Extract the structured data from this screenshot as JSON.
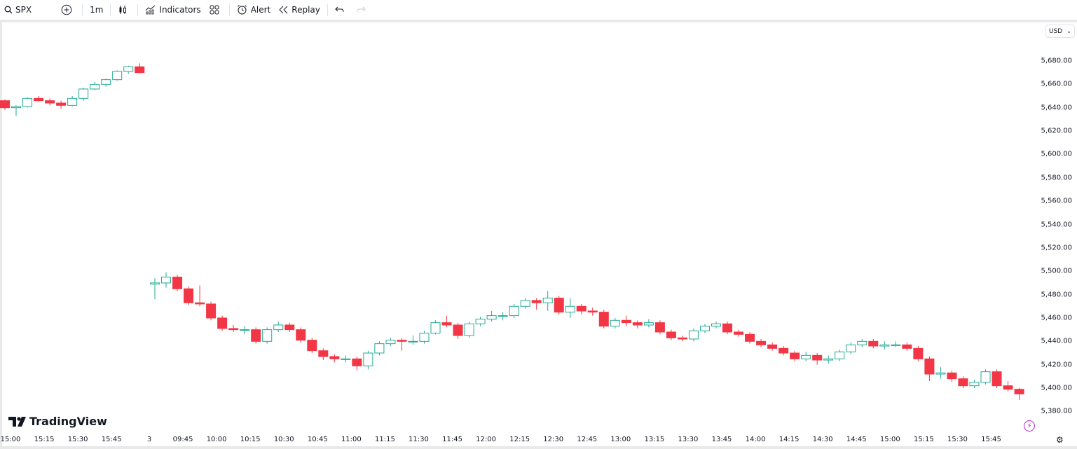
{
  "toolbar": {
    "symbol": "SPX",
    "interval": "1m",
    "indicators_label": "Indicators",
    "alert_label": "Alert",
    "replay_label": "Replay"
  },
  "currency": "USD",
  "brand": "TradingView",
  "colors": {
    "up": "#22ab94",
    "down": "#f23645",
    "accent": "#b526c9"
  },
  "chart_data": {
    "type": "candlestick",
    "symbol": "SPX",
    "interval": "1m",
    "ylim": [
      5370,
      5690
    ],
    "y_ticks": [
      "5,680.00",
      "5,660.00",
      "5,640.00",
      "5,620.00",
      "5,600.00",
      "5,580.00",
      "5,560.00",
      "5,540.00",
      "5,520.00",
      "5,500.00",
      "5,480.00",
      "5,460.00",
      "5,440.00",
      "5,420.00",
      "5,400.00",
      "5,380.00"
    ],
    "y_tick_values": [
      5680,
      5660,
      5640,
      5620,
      5600,
      5580,
      5560,
      5540,
      5520,
      5500,
      5480,
      5460,
      5440,
      5420,
      5400,
      5380
    ],
    "x_ticks": [
      {
        "label": "15:00",
        "session": 1,
        "time": "15:00"
      },
      {
        "label": "15:15",
        "session": 1,
        "time": "15:15"
      },
      {
        "label": "15:30",
        "session": 1,
        "time": "15:30"
      },
      {
        "label": "15:45",
        "session": 1,
        "time": "15:45"
      },
      {
        "label": "3",
        "session": 2,
        "time": "09:30"
      },
      {
        "label": "09:45",
        "session": 2,
        "time": "09:45"
      },
      {
        "label": "10:00",
        "session": 2,
        "time": "10:00"
      },
      {
        "label": "10:15",
        "session": 2,
        "time": "10:15"
      },
      {
        "label": "10:30",
        "session": 2,
        "time": "10:30"
      },
      {
        "label": "10:45",
        "session": 2,
        "time": "10:45"
      },
      {
        "label": "11:00",
        "session": 2,
        "time": "11:00"
      },
      {
        "label": "11:15",
        "session": 2,
        "time": "11:15"
      },
      {
        "label": "11:30",
        "session": 2,
        "time": "11:30"
      },
      {
        "label": "11:45",
        "session": 2,
        "time": "11:45"
      },
      {
        "label": "12:00",
        "session": 2,
        "time": "12:00"
      },
      {
        "label": "12:15",
        "session": 2,
        "time": "12:15"
      },
      {
        "label": "12:30",
        "session": 2,
        "time": "12:30"
      },
      {
        "label": "12:45",
        "session": 2,
        "time": "12:45"
      },
      {
        "label": "13:00",
        "session": 2,
        "time": "13:00"
      },
      {
        "label": "13:15",
        "session": 2,
        "time": "13:15"
      },
      {
        "label": "13:30",
        "session": 2,
        "time": "13:30"
      },
      {
        "label": "13:45",
        "session": 2,
        "time": "13:45"
      },
      {
        "label": "14:00",
        "session": 2,
        "time": "14:00"
      },
      {
        "label": "14:15",
        "session": 2,
        "time": "14:15"
      },
      {
        "label": "14:30",
        "session": 2,
        "time": "14:30"
      },
      {
        "label": "14:45",
        "session": 2,
        "time": "14:45"
      },
      {
        "label": "15:00",
        "session": 2,
        "time": "15:00"
      },
      {
        "label": "15:15",
        "session": 2,
        "time": "15:15"
      },
      {
        "label": "15:30",
        "session": 2,
        "time": "15:30"
      },
      {
        "label": "15:45",
        "session": 2,
        "time": "15:45"
      }
    ],
    "candle_columns": [
      "time",
      "open",
      "high",
      "low",
      "close"
    ],
    "sessions": [
      {
        "candles": [
          [
            "14:55",
            5646,
            5647,
            5638,
            5640
          ],
          [
            "15:00",
            5640,
            5642,
            5633,
            5641
          ],
          [
            "15:05",
            5641,
            5649,
            5640,
            5648
          ],
          [
            "15:10",
            5648,
            5650,
            5645,
            5646
          ],
          [
            "15:15",
            5646,
            5648,
            5642,
            5644
          ],
          [
            "15:20",
            5644,
            5646,
            5639,
            5642
          ],
          [
            "15:25",
            5642,
            5650,
            5641,
            5648
          ],
          [
            "15:30",
            5648,
            5657,
            5646,
            5656
          ],
          [
            "15:35",
            5656,
            5662,
            5655,
            5660
          ],
          [
            "15:40",
            5660,
            5665,
            5658,
            5664
          ],
          [
            "15:45",
            5664,
            5672,
            5663,
            5671
          ],
          [
            "15:50",
            5671,
            5676,
            5669,
            5675
          ],
          [
            "15:55",
            5675,
            5678,
            5669,
            5670
          ]
        ]
      },
      {
        "candles": [
          [
            "09:30",
            5489,
            5494,
            5476,
            5490
          ],
          [
            "09:35",
            5490,
            5499,
            5486,
            5495
          ],
          [
            "09:40",
            5495,
            5497,
            5483,
            5485
          ],
          [
            "09:45",
            5485,
            5487,
            5471,
            5473
          ],
          [
            "09:50",
            5473,
            5488,
            5470,
            5472
          ],
          [
            "09:55",
            5472,
            5474,
            5458,
            5460
          ],
          [
            "10:00",
            5460,
            5462,
            5449,
            5451
          ],
          [
            "10:05",
            5451,
            5454,
            5448,
            5450
          ],
          [
            "10:10",
            5450,
            5453,
            5446,
            5450
          ],
          [
            "10:15",
            5450,
            5452,
            5438,
            5440
          ],
          [
            "10:20",
            5440,
            5452,
            5438,
            5450
          ],
          [
            "10:25",
            5450,
            5457,
            5448,
            5454
          ],
          [
            "10:30",
            5454,
            5456,
            5448,
            5450
          ],
          [
            "10:35",
            5450,
            5452,
            5439,
            5441
          ],
          [
            "10:40",
            5441,
            5443,
            5430,
            5432
          ],
          [
            "10:45",
            5432,
            5434,
            5424,
            5427
          ],
          [
            "10:50",
            5427,
            5429,
            5422,
            5425
          ],
          [
            "10:55",
            5425,
            5428,
            5422,
            5425
          ],
          [
            "11:00",
            5425,
            5427,
            5415,
            5419
          ],
          [
            "11:05",
            5419,
            5432,
            5416,
            5430
          ],
          [
            "11:10",
            5430,
            5440,
            5428,
            5438
          ],
          [
            "11:15",
            5438,
            5443,
            5436,
            5441
          ],
          [
            "11:20",
            5441,
            5443,
            5432,
            5440
          ],
          [
            "11:25",
            5440,
            5445,
            5437,
            5440
          ],
          [
            "11:30",
            5440,
            5449,
            5438,
            5447
          ],
          [
            "11:35",
            5447,
            5458,
            5446,
            5456
          ],
          [
            "11:40",
            5456,
            5462,
            5452,
            5454
          ],
          [
            "11:45",
            5454,
            5456,
            5442,
            5445
          ],
          [
            "11:50",
            5445,
            5457,
            5443,
            5455
          ],
          [
            "11:55",
            5455,
            5461,
            5453,
            5459
          ],
          [
            "12:00",
            5459,
            5466,
            5457,
            5462
          ],
          [
            "12:05",
            5462,
            5465,
            5458,
            5462
          ],
          [
            "12:10",
            5462,
            5472,
            5460,
            5470
          ],
          [
            "12:15",
            5470,
            5477,
            5468,
            5475
          ],
          [
            "12:20",
            5475,
            5477,
            5467,
            5473
          ],
          [
            "12:25",
            5473,
            5483,
            5466,
            5477
          ],
          [
            "12:30",
            5477,
            5479,
            5463,
            5465
          ],
          [
            "12:35",
            5465,
            5477,
            5460,
            5470
          ],
          [
            "12:40",
            5470,
            5472,
            5463,
            5466
          ],
          [
            "12:45",
            5466,
            5469,
            5462,
            5465
          ],
          [
            "12:50",
            5465,
            5467,
            5451,
            5453
          ],
          [
            "12:55",
            5453,
            5460,
            5451,
            5458
          ],
          [
            "13:00",
            5458,
            5462,
            5453,
            5456
          ],
          [
            "13:05",
            5456,
            5458,
            5451,
            5454
          ],
          [
            "13:10",
            5454,
            5459,
            5452,
            5456
          ],
          [
            "13:15",
            5456,
            5458,
            5446,
            5448
          ],
          [
            "13:20",
            5448,
            5450,
            5441,
            5443
          ],
          [
            "13:25",
            5443,
            5445,
            5440,
            5442
          ],
          [
            "13:30",
            5442,
            5451,
            5440,
            5449
          ],
          [
            "13:35",
            5449,
            5455,
            5447,
            5453
          ],
          [
            "13:40",
            5453,
            5457,
            5451,
            5455
          ],
          [
            "13:45",
            5455,
            5457,
            5446,
            5448
          ],
          [
            "13:50",
            5448,
            5450,
            5444,
            5446
          ],
          [
            "13:55",
            5446,
            5448,
            5438,
            5440
          ],
          [
            "14:00",
            5440,
            5442,
            5435,
            5437
          ],
          [
            "14:05",
            5437,
            5439,
            5432,
            5434
          ],
          [
            "14:10",
            5434,
            5436,
            5428,
            5430
          ],
          [
            "14:15",
            5430,
            5432,
            5423,
            5425
          ],
          [
            "14:20",
            5425,
            5431,
            5423,
            5428
          ],
          [
            "14:25",
            5428,
            5430,
            5420,
            5424
          ],
          [
            "14:30",
            5424,
            5428,
            5421,
            5425
          ],
          [
            "14:35",
            5425,
            5433,
            5423,
            5431
          ],
          [
            "14:40",
            5431,
            5439,
            5429,
            5437
          ],
          [
            "14:45",
            5437,
            5442,
            5435,
            5440
          ],
          [
            "14:50",
            5440,
            5442,
            5434,
            5436
          ],
          [
            "14:55",
            5436,
            5440,
            5433,
            5437
          ],
          [
            "15:00",
            5437,
            5440,
            5435,
            5437
          ],
          [
            "15:05",
            5437,
            5439,
            5432,
            5434
          ],
          [
            "15:10",
            5434,
            5436,
            5423,
            5425
          ],
          [
            "15:15",
            5425,
            5427,
            5406,
            5412
          ],
          [
            "15:20",
            5412,
            5418,
            5408,
            5413
          ],
          [
            "15:25",
            5413,
            5415,
            5405,
            5408
          ],
          [
            "15:30",
            5408,
            5410,
            5400,
            5402
          ],
          [
            "15:35",
            5402,
            5407,
            5400,
            5405
          ],
          [
            "15:40",
            5405,
            5416,
            5403,
            5414
          ],
          [
            "15:45",
            5414,
            5416,
            5400,
            5402
          ],
          [
            "15:50",
            5402,
            5406,
            5397,
            5399
          ],
          [
            "15:55",
            5399,
            5400,
            5390,
            5395
          ]
        ]
      }
    ]
  }
}
